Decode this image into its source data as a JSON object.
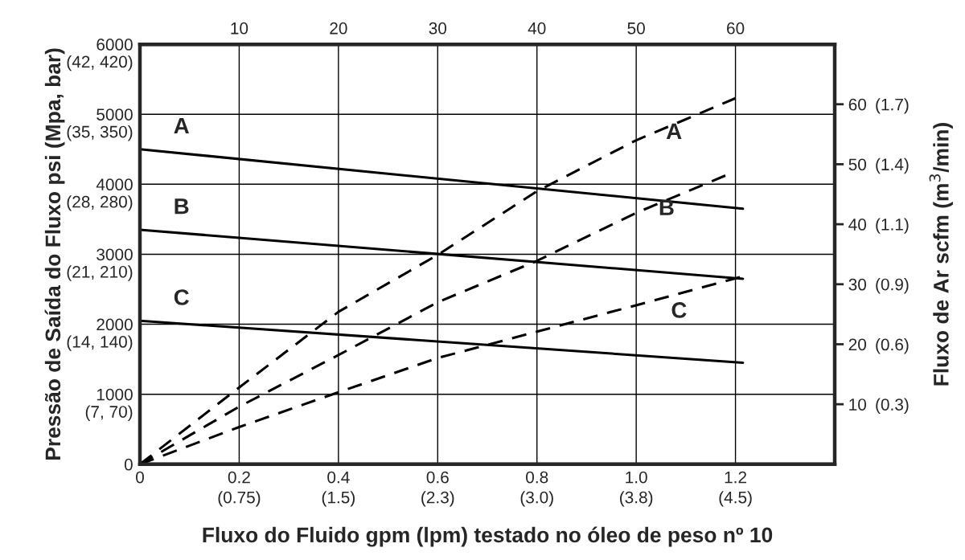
{
  "chart_data": {
    "type": "line",
    "xlabel": "Fluxo do Fluido gpm (lpm) testado no óleo de peso nº 10",
    "ylabel": "Pressão de Saída do Fluxo psi (Mpa, bar)",
    "y2label": "Fluxo de Ar scfm (m$^{3}$/min)",
    "xlim": [
      0,
      1.4
    ],
    "xticks": [
      0,
      0.2,
      0.4,
      0.6,
      0.8,
      {
        "value": 1.0,
        "label": "1.0"
      },
      1.2
    ],
    "annotations": [
      "(0.75)",
      "(1.5)",
      "(2.3)",
      "(3.0)",
      "(3.8)",
      "(4.5)",
      "(7, 70)",
      "(14, 140)",
      "(21, 210)",
      "(28, 280)",
      "(35, 350)",
      "(42, 420)"
    ],
    "ylim": [
      0,
      6000
    ],
    "yticks": [
      0,
      1000,
      2000,
      3000,
      4000,
      5000,
      6000
    ],
    "y2lim": [
      0,
      70
    ],
    "y2ticks": [
      10,
      20,
      30,
      40,
      50,
      60
    ],
    "y3lim": [
      0,
      1.982
    ],
    "y3ticks": [
      {
        "value": 0.283,
        "label": "(0.3)"
      },
      {
        "value": 0.566,
        "label": "(0.6)"
      },
      {
        "value": 0.85,
        "label": "(0.9)"
      },
      {
        "value": 1.133,
        "label": "(1.1)"
      },
      {
        "value": 1.416,
        "label": "(1.4)"
      },
      {
        "value": 1.699,
        "label": "(1.7)"
      }
    ],
    "x2lim": [
      0,
      70
    ],
    "x2ticks": [
      10,
      20,
      30,
      40,
      50,
      60
    ],
    "grid": true,
    "marker": "none",
    "series": [
      {
        "name": "A",
        "color": "#000000",
        "line_style": "solid",
        "x": [
          0,
          1.215
        ],
        "values": [
          4500,
          3650
        ]
      },
      {
        "name": "B",
        "color": "#000000",
        "line_style": "solid",
        "x": [
          0,
          1.215
        ],
        "values": [
          3350,
          2650
        ]
      },
      {
        "name": "C",
        "color": "#000000",
        "line_style": "solid",
        "x": [
          0,
          1.215
        ],
        "values": [
          2050,
          1450
        ]
      },
      {
        "name": "A",
        "color": "#000000",
        "line_style": "dashed",
        "axis": "y2",
        "x": [
          0,
          0.2,
          0.4,
          0.6,
          0.8,
          1.0,
          1.2
        ],
        "values": [
          0,
          12.8,
          25.4,
          34.9,
          45.5,
          54,
          61
        ]
      },
      {
        "name": "B",
        "color": "#000000",
        "line_style": "dashed",
        "axis": "y2",
        "x": [
          0,
          0.2,
          0.4,
          0.6,
          0.8,
          1.0,
          1.185
        ],
        "values": [
          0,
          9.6,
          18.2,
          27,
          33.9,
          41.9,
          48.3
        ]
      },
      {
        "name": "C",
        "color": "#000000",
        "line_style": "dashed",
        "axis": "y2",
        "x": [
          0,
          0.2,
          0.4,
          0.6,
          0.8,
          1.0,
          1.21
        ],
        "values": [
          0,
          6.2,
          12,
          17.7,
          22.1,
          26.5,
          31.2
        ]
      }
    ]
  }
}
